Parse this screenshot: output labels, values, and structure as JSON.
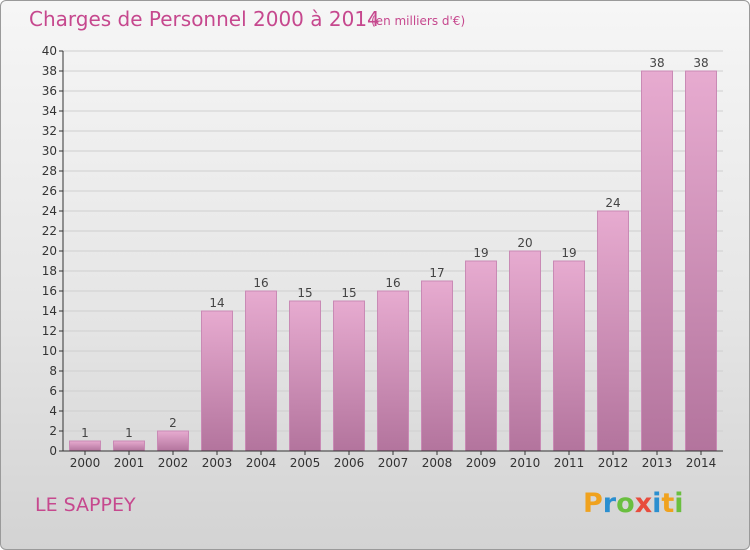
{
  "title": "Charges de Personnel 2000 à 2014",
  "subtitle": "(en milliers d'€)",
  "commune": "LE SAPPEY",
  "brand": {
    "letters": [
      "P",
      "r",
      "o",
      "x",
      "i",
      "t",
      "i"
    ],
    "colors": [
      "#f0a21e",
      "#2a8fd0",
      "#6abf3f",
      "#e84c3d",
      "#2a8fd0",
      "#f0a21e",
      "#6abf3f"
    ]
  },
  "colors": {
    "bar_top": "#e7abd0",
    "bar_bottom": "#b3749d",
    "bar_edge": "#c98ab5",
    "title": "#c6488e",
    "grid": "#cfcfcf",
    "axis": "#333333"
  },
  "chart_data": {
    "type": "bar",
    "title": "Charges de Personnel 2000 à 2014",
    "subtitle": "(en milliers d'€)",
    "categories": [
      "2000",
      "2001",
      "2002",
      "2003",
      "2004",
      "2005",
      "2006",
      "2007",
      "2008",
      "2009",
      "2010",
      "2011",
      "2012",
      "2013",
      "2014"
    ],
    "values": [
      1,
      1,
      2,
      14,
      16,
      15,
      15,
      16,
      17,
      19,
      20,
      19,
      24,
      38,
      38
    ],
    "ylim": [
      0,
      40
    ],
    "yticks": [
      0,
      2,
      4,
      6,
      8,
      10,
      12,
      14,
      16,
      18,
      20,
      22,
      24,
      26,
      28,
      30,
      32,
      34,
      36,
      38,
      40
    ],
    "grid": true,
    "legend": "none"
  }
}
